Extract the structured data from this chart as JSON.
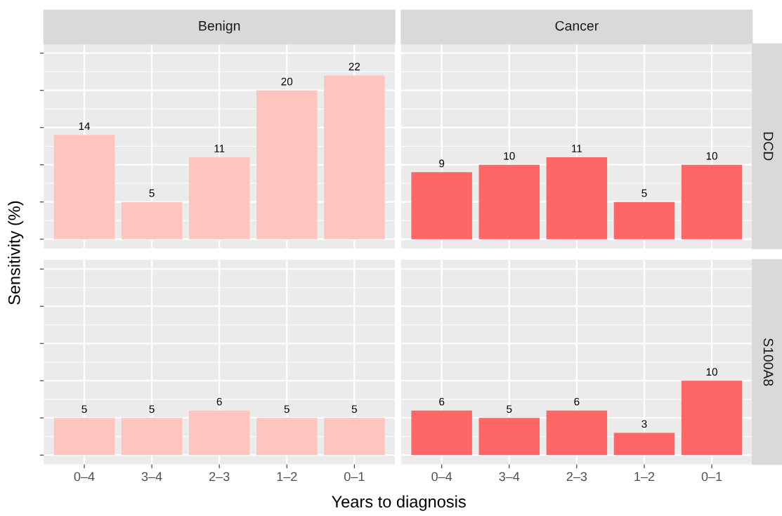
{
  "chart_data": [
    {
      "type": "bar",
      "title": "Benign",
      "ylabel": "Sensitivity (%)",
      "categories": [
        null,
        null,
        null,
        null,
        null
      ],
      "values": [
        14,
        5,
        11,
        20,
        22
      ],
      "color": "#ffc4bd",
      "data_labels": true,
      "ylim": [
        -1.25,
        26.25
      ],
      "yticks": [
        {
          "value": 0,
          "label": null
        },
        {
          "value": 5,
          "label": null
        },
        {
          "value": 10,
          "label": null
        },
        {
          "value": 15,
          "label": null
        },
        {
          "value": 20,
          "label": null
        },
        {
          "value": 25,
          "label": null
        }
      ],
      "grid": true,
      "tick_labels": false
    },
    {
      "type": "bar",
      "title": "Cancer",
      "y2label": "DCD",
      "categories": [
        null,
        null,
        null,
        null,
        null
      ],
      "values": [
        9,
        10,
        11,
        5,
        10
      ],
      "color": "#ff6666",
      "data_labels": true,
      "ylim": [
        -1.25,
        26.25
      ],
      "yticks": [
        {
          "value": 0,
          "label": null
        },
        {
          "value": 5,
          "label": null
        },
        {
          "value": 10,
          "label": null
        },
        {
          "value": 15,
          "label": null
        },
        {
          "value": 20,
          "label": null
        },
        {
          "value": 25,
          "label": null
        }
      ],
      "grid": true,
      "tick_labels": false
    },
    {
      "type": "bar",
      "xlabel": "Years to diagnosis",
      "categories": [
        "0–4",
        "3–4",
        "2–3",
        "1–2",
        "0–1"
      ],
      "values": [
        5,
        5,
        6,
        5,
        5
      ],
      "color": "#ffc4bd",
      "data_labels": true,
      "ylim": [
        -1.25,
        26.25
      ],
      "yticks": [
        {
          "value": 0,
          "label": null
        },
        {
          "value": 5,
          "label": null
        },
        {
          "value": 10,
          "label": null
        },
        {
          "value": 15,
          "label": null
        },
        {
          "value": 20,
          "label": null
        },
        {
          "value": 25,
          "label": null
        }
      ],
      "grid": true,
      "tick_labels": "x"
    },
    {
      "type": "bar",
      "y2label": "S100A8",
      "categories": [
        "0–4",
        "3–4",
        "2–3",
        "1–2",
        "0–1"
      ],
      "values": [
        6,
        5,
        6,
        3,
        10
      ],
      "color": "#ff6666",
      "data_labels": true,
      "ylim": [
        -1.25,
        26.25
      ],
      "yticks": [
        {
          "value": 0,
          "label": null
        },
        {
          "value": 5,
          "label": null
        },
        {
          "value": 10,
          "label": null
        },
        {
          "value": 15,
          "label": null
        },
        {
          "value": 20,
          "label": null
        },
        {
          "value": 25,
          "label": null
        }
      ],
      "grid": true,
      "tick_labels": "x"
    }
  ]
}
